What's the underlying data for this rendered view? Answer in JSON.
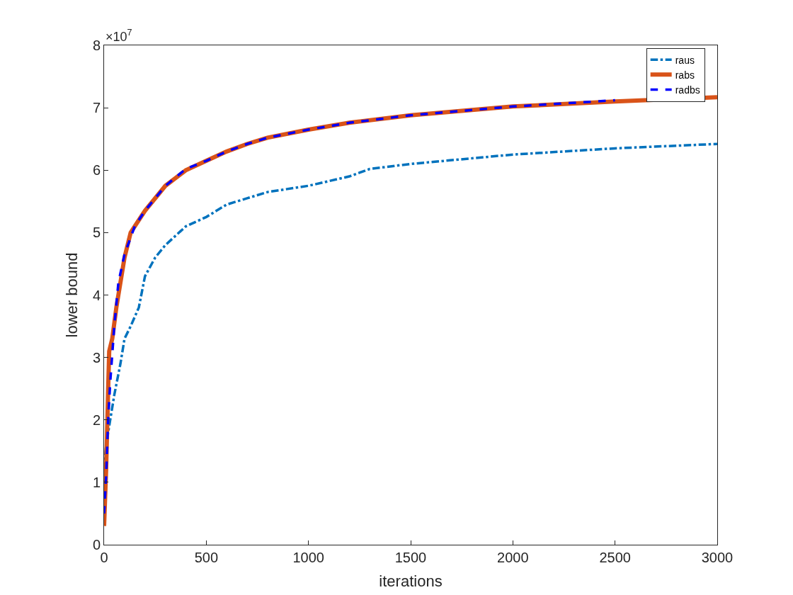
{
  "chart_data": {
    "type": "line",
    "xlabel": "iterations",
    "ylabel": "lower bound",
    "annotations": [
      "×10$^{7}$"
    ],
    "xlim": [
      0,
      3000
    ],
    "xticks": [
      0,
      500,
      1000,
      1500,
      2000,
      2500,
      3000
    ],
    "ylim": [
      0,
      8
    ],
    "yticks": [
      0,
      1,
      2,
      3,
      4,
      5,
      6,
      7,
      8
    ],
    "legend": "top right",
    "series": [
      {
        "name": "raus",
        "color": "#0072bd",
        "line_style": "dashdot",
        "x": [
          0,
          10,
          30,
          50,
          80,
          100,
          130,
          170,
          200,
          250,
          300,
          400,
          500,
          600,
          700,
          800,
          1000,
          1200,
          1300,
          1500,
          2000,
          2500,
          3000
        ],
        "values": [
          1.2,
          1.6,
          2.0,
          2.4,
          2.9,
          3.3,
          3.5,
          3.8,
          4.3,
          4.6,
          4.8,
          5.1,
          5.25,
          5.45,
          5.55,
          5.65,
          5.75,
          5.9,
          6.02,
          6.1,
          6.25,
          6.35,
          6.42
        ]
      },
      {
        "name": "rabs",
        "color": "#d95319",
        "line_style": "solid",
        "x": [
          0,
          10,
          20,
          25,
          40,
          60,
          80,
          100,
          130,
          160,
          200,
          300,
          400,
          500,
          600,
          700,
          800,
          1000,
          1200,
          1500,
          2000,
          2500,
          3000
        ],
        "values": [
          0.3,
          1.2,
          2.5,
          3.1,
          3.3,
          3.8,
          4.2,
          4.6,
          5.0,
          5.15,
          5.35,
          5.75,
          6.0,
          6.15,
          6.3,
          6.42,
          6.52,
          6.65,
          6.76,
          6.88,
          7.02,
          7.1,
          7.17
        ]
      },
      {
        "name": "radbs",
        "color": "#0000ff",
        "line_style": "dashed",
        "x": [
          0,
          10,
          20,
          30,
          50,
          70,
          100,
          150,
          200,
          300,
          400,
          500,
          600,
          700,
          800,
          1000,
          1200,
          1500,
          2000,
          2500
        ],
        "values": [
          0.5,
          1.1,
          2.0,
          2.6,
          3.5,
          4.2,
          4.65,
          5.1,
          5.35,
          5.75,
          6.02,
          6.15,
          6.3,
          6.42,
          6.52,
          6.65,
          6.76,
          6.88,
          7.02,
          7.12
        ]
      }
    ]
  }
}
